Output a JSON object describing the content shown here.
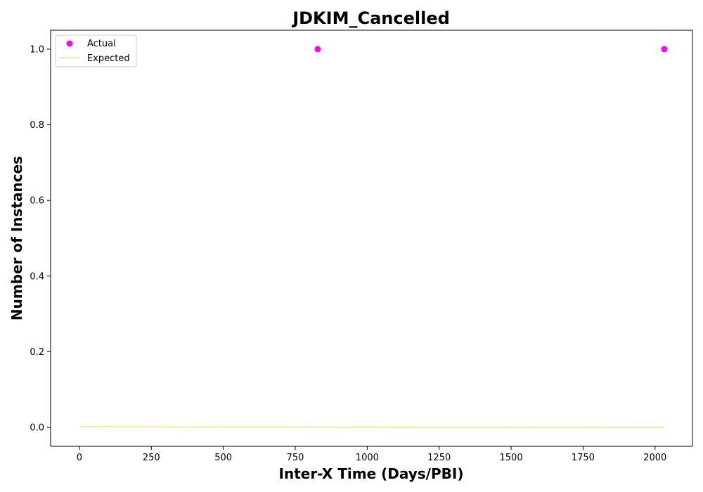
{
  "chart_data": {
    "type": "scatter",
    "title": "JDKIM_Cancelled",
    "xlabel": "Inter-X Time (Days/PBI)",
    "ylabel": "Number of Instances",
    "xlim": [
      -100,
      2130
    ],
    "ylim": [
      -0.05,
      1.05
    ],
    "xticks": [
      0,
      250,
      500,
      750,
      1000,
      1250,
      1500,
      1750,
      2000
    ],
    "yticks": [
      0.0,
      0.2,
      0.4,
      0.6,
      0.8,
      1.0
    ],
    "grid": false,
    "legend_position": "top-left",
    "series": [
      {
        "name": "Actual",
        "kind": "scatter",
        "color": "#ff00ff",
        "x": [
          828,
          2032
        ],
        "y": [
          1.0,
          1.0
        ]
      },
      {
        "name": "Expected",
        "kind": "line",
        "color": "#f0e08a",
        "x": [
          0,
          250,
          500,
          750,
          1000,
          1250,
          1500,
          1750,
          2032
        ],
        "y": [
          0.0018,
          0.0015,
          0.0012,
          0.001,
          0.0007,
          0.0005,
          0.0003,
          0.0001,
          -0.0001
        ]
      }
    ]
  }
}
